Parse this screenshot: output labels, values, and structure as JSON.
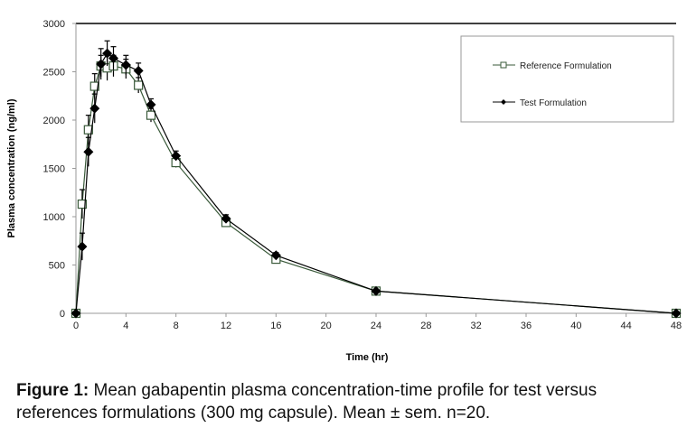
{
  "chart_data": {
    "type": "line",
    "xlabel": "Time (hr)",
    "ylabel": "Plasma concentration (ng/ml)",
    "xlim": [
      0,
      48
    ],
    "ylim": [
      0,
      3000
    ],
    "xticks": [
      0,
      4,
      8,
      12,
      16,
      20,
      24,
      28,
      32,
      36,
      40,
      44,
      48
    ],
    "yticks": [
      0,
      500,
      1000,
      1500,
      2000,
      2500,
      3000
    ],
    "grid": false,
    "legend": "top-right",
    "x": [
      0,
      0.5,
      1,
      1.5,
      2,
      2.5,
      3,
      4,
      5,
      6,
      8,
      12,
      16,
      24,
      48
    ],
    "series": [
      {
        "name": "Reference Formulation",
        "marker": "open-square",
        "color": "#3a5a3a",
        "values": [
          0,
          1130,
          1900,
          2350,
          2560,
          2540,
          2560,
          2530,
          2360,
          2050,
          1560,
          940,
          560,
          230,
          0
        ],
        "sem": [
          0,
          150,
          150,
          130,
          110,
          130,
          110,
          100,
          80,
          70,
          50,
          40,
          30,
          20,
          0
        ]
      },
      {
        "name": "Test Formulation",
        "marker": "filled-diamond",
        "color": "#000000",
        "values": [
          0,
          690,
          1670,
          2120,
          2580,
          2690,
          2640,
          2570,
          2510,
          2160,
          1630,
          980,
          600,
          230,
          0
        ],
        "sem": [
          0,
          140,
          150,
          150,
          160,
          130,
          120,
          100,
          80,
          60,
          50,
          40,
          30,
          20,
          0
        ]
      }
    ]
  },
  "caption": {
    "label": "Figure 1:",
    "text": " Mean gabapentin plasma concentration-time profile for test versus references formulations (300 mg capsule). Mean ± sem. n=20."
  }
}
